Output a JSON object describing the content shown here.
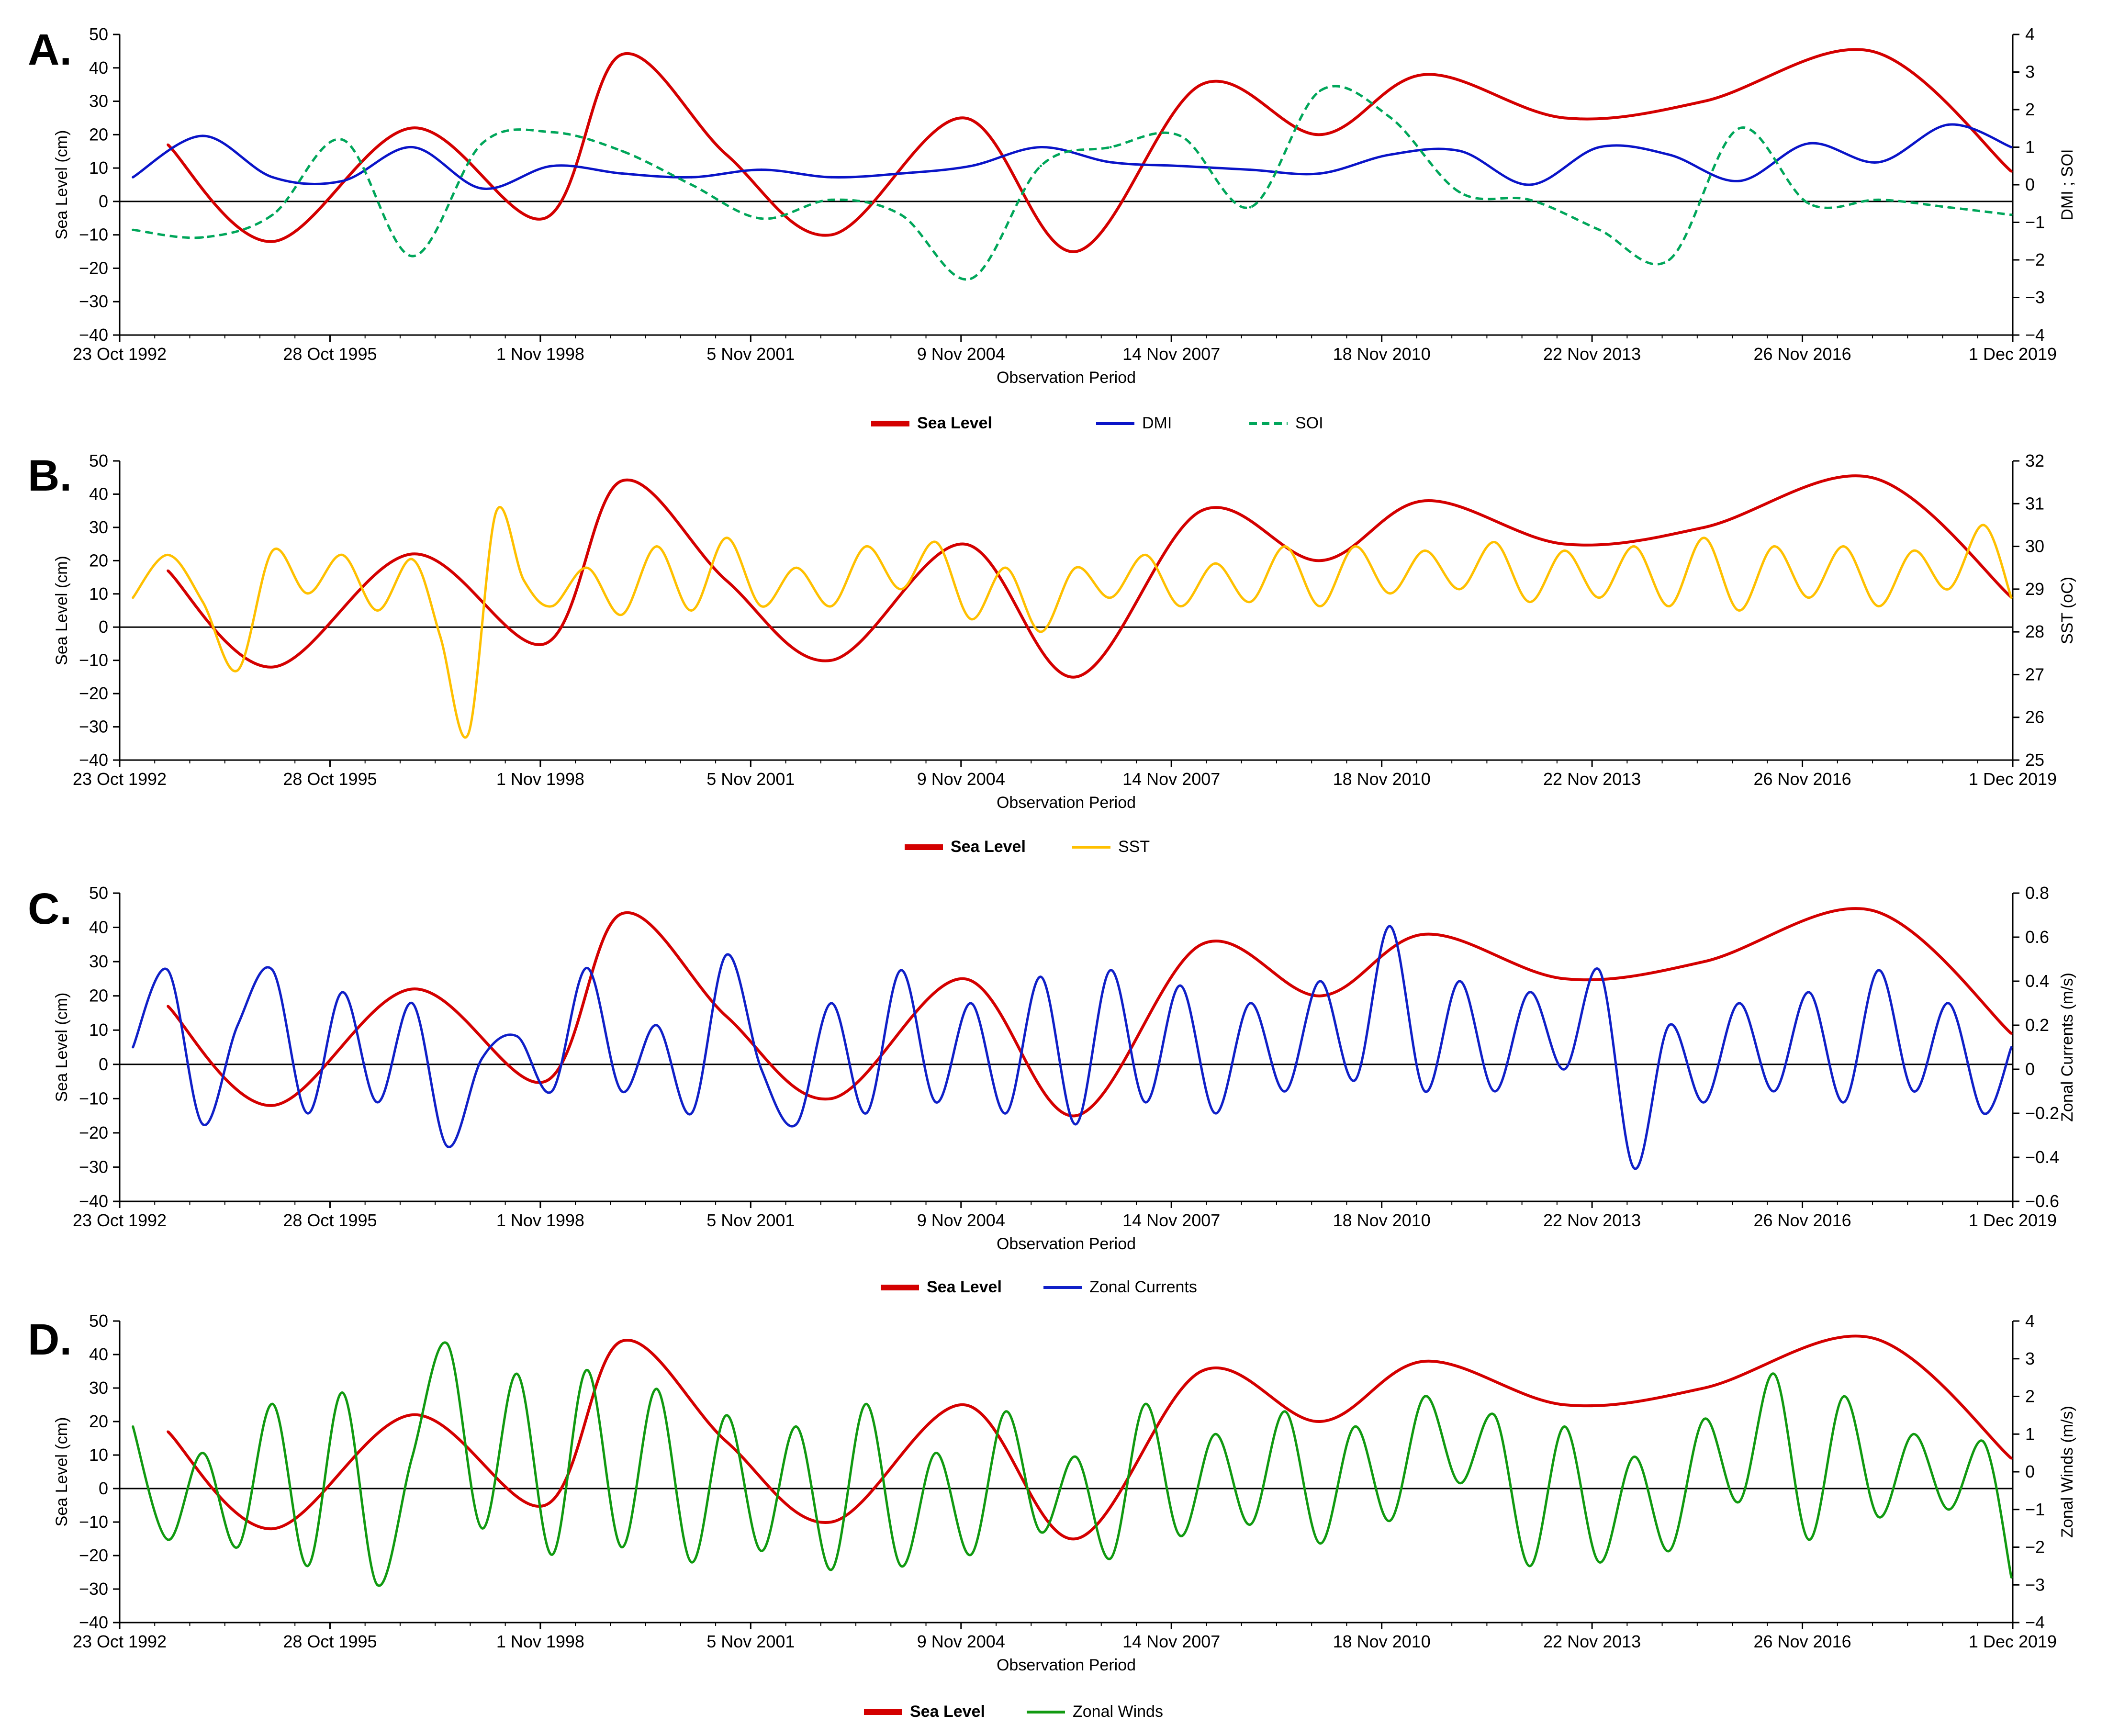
{
  "figure": {
    "shared_x_ticks": [
      "23 Oct 1992",
      "28 Oct 1995",
      "1 Nov 1998",
      "5 Nov 2001",
      "9 Nov 2004",
      "14 Nov 2007",
      "18 Nov 2010",
      "22 Nov 2013",
      "26 Nov 2016",
      "1 Dec 2019"
    ],
    "colors": {
      "sea_level": "#d40000",
      "dmi": "#0a14c8",
      "soi": "#00a65a",
      "sst": "#ffc000",
      "currents": "#1020c8",
      "winds": "#119a11",
      "axis": "#000000"
    }
  },
  "chart_data": [
    {
      "panel": "A.",
      "type": "line",
      "xlabel": "Observation Period",
      "ylabel": "Sea Level (cm)",
      "ylabel_right": "DMI ; SOI",
      "x_range": [
        1992.81,
        2019.92
      ],
      "ylim": [
        -40,
        50
      ],
      "ylim_right": [
        -4,
        4
      ],
      "y_ticks": [
        "50",
        "40",
        "30",
        "20",
        "10",
        "0",
        "−10",
        "−20",
        "−30",
        "−40"
      ],
      "y_ticks_right": [
        "4",
        "3",
        "2",
        "1",
        "0",
        "−1",
        "−2",
        "−3",
        "−4"
      ],
      "legend": [
        "Sea Level",
        "DMI",
        "SOI"
      ],
      "series": [
        {
          "name": "Sea Level",
          "axis": "left",
          "style": "solid",
          "color_key": "sea_level",
          "x": [
            1993.5,
            1995,
            1997,
            1998.9,
            2000,
            2001.5,
            2003,
            2004.9,
            2006.5,
            2008.3,
            2010,
            2011.5,
            2013.5,
            2015.5,
            2017.9,
            2019.9
          ],
          "values": [
            17,
            -12,
            22,
            -5,
            44,
            14,
            -10,
            25,
            -15,
            35,
            20,
            38,
            25,
            30,
            45,
            9
          ]
        },
        {
          "name": "DMI",
          "axis": "right",
          "style": "solid",
          "color_key": "dmi",
          "x": [
            1993,
            1994,
            1995,
            1996,
            1997,
            1998,
            1999,
            2000,
            2001,
            2002,
            2003,
            2004,
            2005,
            2006,
            2007,
            2008,
            2009,
            2010,
            2011,
            2012,
            2013,
            2014,
            2015,
            2016,
            2017,
            2018,
            2019,
            2019.9
          ],
          "values": [
            0.2,
            1.3,
            0.2,
            0.1,
            1.0,
            -0.1,
            0.5,
            0.3,
            0.2,
            0.4,
            0.2,
            0.3,
            0.5,
            1.0,
            0.6,
            0.5,
            0.4,
            0.3,
            0.8,
            0.9,
            0.0,
            1.0,
            0.8,
            0.1,
            1.1,
            0.6,
            1.6,
            1.0
          ]
        },
        {
          "name": "SOI",
          "axis": "right",
          "style": "dashed",
          "color_key": "soi",
          "x": [
            1993,
            1994,
            1995,
            1996,
            1997,
            1998,
            1999,
            2000,
            2001,
            2002,
            2003,
            2004,
            2005,
            2006,
            2007,
            2008,
            2009,
            2010,
            2011,
            2012,
            2013,
            2014,
            2015,
            2016,
            2017,
            2018,
            2019,
            2019.9
          ],
          "values": [
            -1.2,
            -1.4,
            -0.8,
            1.2,
            -1.9,
            1.1,
            1.4,
            0.9,
            0.0,
            -0.9,
            -0.4,
            -0.8,
            -2.5,
            0.5,
            1.0,
            1.3,
            -0.6,
            2.5,
            1.8,
            -0.2,
            -0.4,
            -1.2,
            -2.0,
            1.5,
            -0.5,
            -0.4,
            -0.6,
            -0.8
          ]
        }
      ]
    },
    {
      "panel": "B.",
      "type": "line",
      "xlabel": "Observation Period",
      "ylabel": "Sea Level (cm)",
      "ylabel_right": "SST (oC)",
      "x_range": [
        1992.81,
        2019.92
      ],
      "ylim": [
        -40,
        50
      ],
      "ylim_right": [
        25,
        32
      ],
      "y_ticks": [
        "50",
        "40",
        "30",
        "20",
        "10",
        "0",
        "−10",
        "−20",
        "−30",
        "−40"
      ],
      "y_ticks_right": [
        "32",
        "31",
        "30",
        "29",
        "28",
        "27",
        "26",
        "25"
      ],
      "legend": [
        "Sea Level",
        "SST"
      ],
      "series": [
        {
          "name": "Sea Level",
          "axis": "left",
          "style": "solid",
          "color_key": "sea_level",
          "x": [
            1993.5,
            1995,
            1997,
            1998.9,
            2000,
            2001.5,
            2003,
            2004.9,
            2006.5,
            2008.3,
            2010,
            2011.5,
            2013.5,
            2015.5,
            2017.9,
            2019.9
          ],
          "values": [
            17,
            -12,
            22,
            -5,
            44,
            14,
            -10,
            25,
            -15,
            35,
            20,
            38,
            25,
            30,
            45,
            9
          ]
        },
        {
          "name": "SST",
          "axis": "right",
          "style": "solid",
          "color_key": "sst",
          "x": [
            1993,
            1993.5,
            1994,
            1994.5,
            1995,
            1995.5,
            1996,
            1996.5,
            1997,
            1997.4,
            1997.8,
            1998.2,
            1998.6,
            1999,
            1999.5,
            2000,
            2000.5,
            2001,
            2001.5,
            2002,
            2002.5,
            2003,
            2003.5,
            2004,
            2004.5,
            2005,
            2005.5,
            2006,
            2006.5,
            2007,
            2007.5,
            2008,
            2008.5,
            2009,
            2009.5,
            2010,
            2010.5,
            2011,
            2011.5,
            2012,
            2012.5,
            2013,
            2013.5,
            2014,
            2014.5,
            2015,
            2015.5,
            2016,
            2016.5,
            2017,
            2017.5,
            2018,
            2018.5,
            2019,
            2019.5,
            2019.9
          ],
          "values": [
            28.8,
            29.8,
            28.7,
            27.1,
            29.9,
            28.9,
            29.8,
            28.5,
            29.7,
            27.9,
            25.6,
            30.8,
            29.2,
            28.6,
            29.5,
            28.4,
            30.0,
            28.5,
            30.2,
            28.6,
            29.5,
            28.6,
            30.0,
            29.0,
            30.1,
            28.3,
            29.5,
            28.0,
            29.5,
            28.8,
            29.8,
            28.6,
            29.6,
            28.7,
            30.0,
            28.6,
            30.0,
            28.9,
            29.9,
            29.0,
            30.1,
            28.7,
            29.9,
            28.8,
            30.0,
            28.6,
            30.2,
            28.5,
            30.0,
            28.8,
            30.0,
            28.6,
            29.9,
            29.0,
            30.5,
            28.8
          ]
        }
      ]
    },
    {
      "panel": "C.",
      "type": "line",
      "xlabel": "Observation Period",
      "ylabel": "Sea Level (cm)",
      "ylabel_right": "Zonal Currents (m/s)",
      "x_range": [
        1992.81,
        2019.92
      ],
      "ylim": [
        -40,
        50
      ],
      "ylim_right": [
        -0.6,
        0.8
      ],
      "y_ticks": [
        "50",
        "40",
        "30",
        "20",
        "10",
        "0",
        "−10",
        "−20",
        "−30",
        "−40"
      ],
      "y_ticks_right": [
        "0.8",
        "0.6",
        "0.4",
        "0.2",
        "0",
        "−0.2",
        "−0.4",
        "−0.6"
      ],
      "legend": [
        "Sea Level",
        "Zonal Currents"
      ],
      "series": [
        {
          "name": "Sea Level",
          "axis": "left",
          "style": "solid",
          "color_key": "sea_level",
          "x": [
            1993.5,
            1995,
            1997,
            1998.9,
            2000,
            2001.5,
            2003,
            2004.9,
            2006.5,
            2008.3,
            2010,
            2011.5,
            2013.5,
            2015.5,
            2017.9,
            2019.9
          ],
          "values": [
            17,
            -12,
            22,
            -5,
            44,
            14,
            -10,
            25,
            -15,
            35,
            20,
            38,
            25,
            30,
            45,
            9
          ]
        },
        {
          "name": "Zonal Currents",
          "axis": "right",
          "style": "solid",
          "color_key": "currents",
          "x": [
            1993,
            1993.5,
            1994,
            1994.5,
            1995,
            1995.5,
            1996,
            1996.5,
            1997,
            1997.5,
            1998,
            1998.5,
            1999,
            1999.5,
            2000,
            2000.5,
            2001,
            2001.5,
            2002,
            2002.5,
            2003,
            2003.5,
            2004,
            2004.5,
            2005,
            2005.5,
            2006,
            2006.5,
            2007,
            2007.5,
            2008,
            2008.5,
            2009,
            2009.5,
            2010,
            2010.5,
            2011,
            2011.5,
            2012,
            2012.5,
            2013,
            2013.5,
            2014,
            2014.5,
            2015,
            2015.5,
            2016,
            2016.5,
            2017,
            2017.5,
            2018,
            2018.5,
            2019,
            2019.5,
            2019.9
          ],
          "values": [
            0.1,
            0.45,
            -0.25,
            0.2,
            0.45,
            -0.2,
            0.35,
            -0.15,
            0.3,
            -0.35,
            0.05,
            0.15,
            -0.1,
            0.46,
            -0.1,
            0.2,
            -0.2,
            0.52,
            0.0,
            -0.25,
            0.3,
            -0.2,
            0.45,
            -0.15,
            0.3,
            -0.2,
            0.42,
            -0.25,
            0.45,
            -0.15,
            0.38,
            -0.2,
            0.3,
            -0.1,
            0.4,
            -0.05,
            0.65,
            -0.1,
            0.4,
            -0.1,
            0.35,
            0.0,
            0.45,
            -0.45,
            0.2,
            -0.15,
            0.3,
            -0.1,
            0.35,
            -0.15,
            0.45,
            -0.1,
            0.3,
            -0.2,
            0.1
          ]
        }
      ]
    },
    {
      "panel": "D.",
      "type": "line",
      "xlabel": "Observation Period",
      "ylabel": "Sea Level (cm)",
      "ylabel_right": "Zonal Winds (m/s)",
      "x_range": [
        1992.81,
        2019.92
      ],
      "ylim": [
        -40,
        50
      ],
      "ylim_right": [
        -4,
        4
      ],
      "y_ticks": [
        "50",
        "40",
        "30",
        "20",
        "10",
        "0",
        "−10",
        "−20",
        "−30",
        "−40"
      ],
      "y_ticks_right": [
        "4",
        "3",
        "2",
        "1",
        "0",
        "−1",
        "−2",
        "−3",
        "−4"
      ],
      "legend": [
        "Sea Level",
        "Zonal Winds"
      ],
      "series": [
        {
          "name": "Sea Level",
          "axis": "left",
          "style": "solid",
          "color_key": "sea_level",
          "x": [
            1993.5,
            1995,
            1997,
            1998.9,
            2000,
            2001.5,
            2003,
            2004.9,
            2006.5,
            2008.3,
            2010,
            2011.5,
            2013.5,
            2015.5,
            2017.9,
            2019.9
          ],
          "values": [
            17,
            -12,
            22,
            -5,
            44,
            14,
            -10,
            25,
            -15,
            35,
            20,
            38,
            25,
            30,
            45,
            9
          ]
        },
        {
          "name": "Zonal Winds",
          "axis": "right",
          "style": "solid",
          "color_key": "winds",
          "x": [
            1993,
            1993.5,
            1994,
            1994.5,
            1995,
            1995.5,
            1996,
            1996.5,
            1997,
            1997.5,
            1998,
            1998.5,
            1999,
            1999.5,
            2000,
            2000.5,
            2001,
            2001.5,
            2002,
            2002.5,
            2003,
            2003.5,
            2004,
            2004.5,
            2005,
            2005.5,
            2006,
            2006.5,
            2007,
            2007.5,
            2008,
            2008.5,
            2009,
            2009.5,
            2010,
            2010.5,
            2011,
            2011.5,
            2012,
            2012.5,
            2013,
            2013.5,
            2014,
            2014.5,
            2015,
            2015.5,
            2016,
            2016.5,
            2017,
            2017.5,
            2018,
            2018.5,
            2019,
            2019.5,
            2019.9
          ],
          "values": [
            1.2,
            -1.8,
            0.5,
            -2.0,
            1.8,
            -2.5,
            2.1,
            -3.0,
            0.4,
            3.4,
            -1.5,
            2.6,
            -2.2,
            2.7,
            -2.0,
            2.2,
            -2.4,
            1.5,
            -2.1,
            1.2,
            -2.6,
            1.8,
            -2.5,
            0.5,
            -2.2,
            1.6,
            -1.6,
            0.4,
            -2.3,
            1.8,
            -1.7,
            1.0,
            -1.4,
            1.6,
            -1.9,
            1.2,
            -1.3,
            2.0,
            -0.3,
            1.5,
            -2.5,
            1.2,
            -2.4,
            0.4,
            -2.1,
            1.4,
            -0.8,
            2.6,
            -1.8,
            2.0,
            -1.2,
            1.0,
            -1.0,
            0.8,
            -2.8
          ]
        }
      ]
    }
  ]
}
